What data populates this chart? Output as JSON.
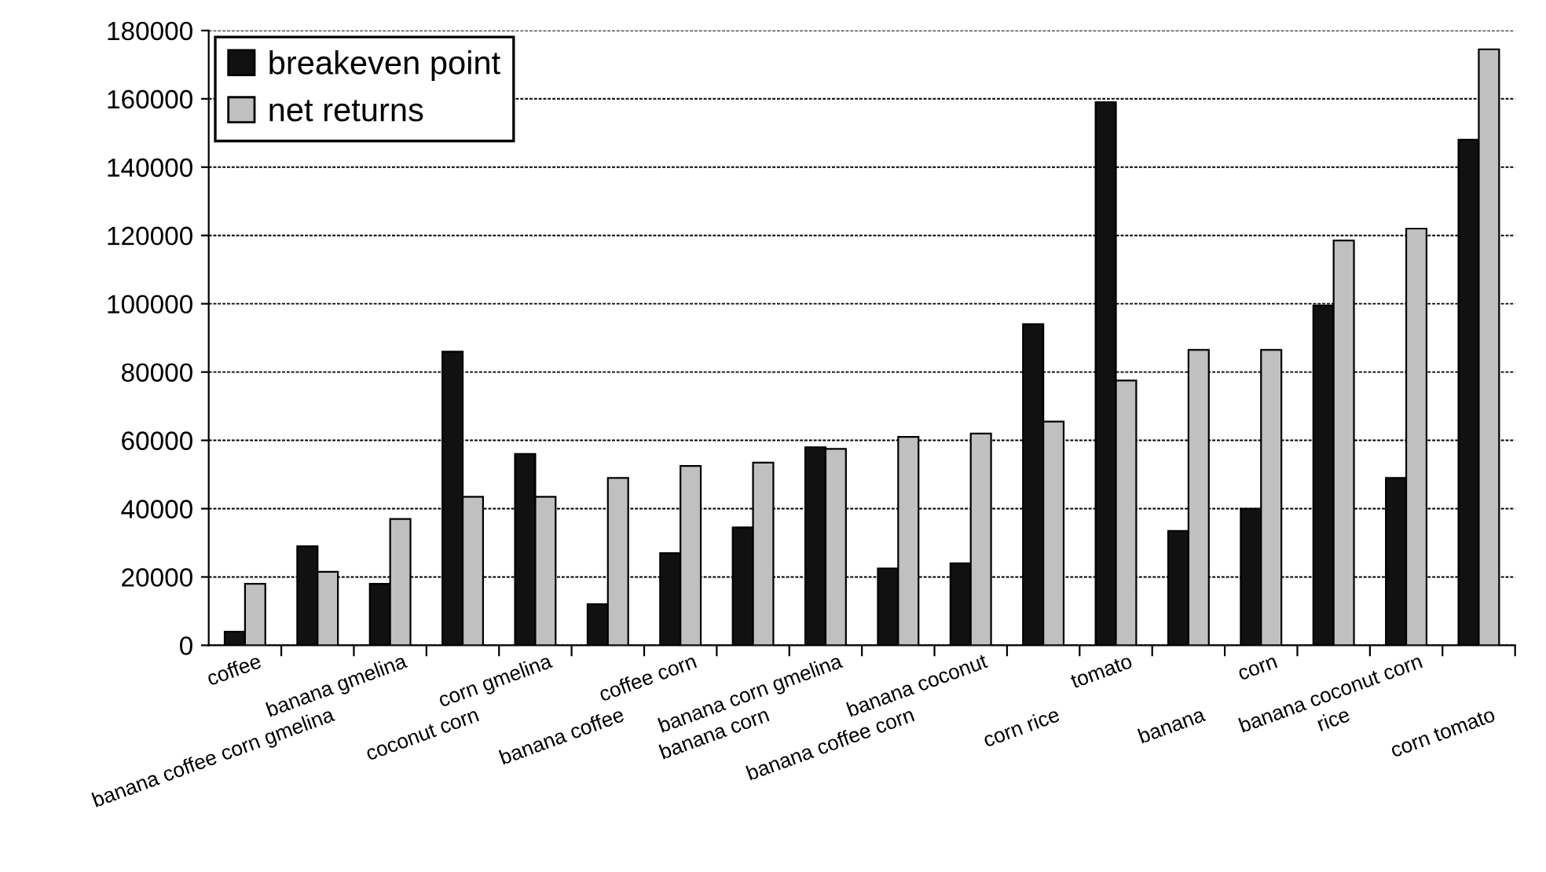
{
  "chart_data": {
    "type": "bar",
    "categories": [
      "coffee",
      "banana coffee corn gmelina",
      "banana gmelina",
      "coconut corn",
      "corn gmelina",
      "banana coffee",
      "coffee corn",
      "banana corn",
      "banana corn gmelina",
      "banana coffee corn",
      "banana coconut",
      "corn rice",
      "tomato",
      "banana",
      "corn",
      "rice",
      "banana coconut corn",
      "corn tomato"
    ],
    "series": [
      {
        "name": "breakeven point",
        "color": "#111111",
        "values": [
          4000,
          29000,
          18000,
          86000,
          56000,
          12000,
          27000,
          34500,
          58000,
          22500,
          24000,
          94000,
          159000,
          33500,
          40000,
          99500,
          49000,
          148000
        ]
      },
      {
        "name": "net returns",
        "color": "#c0c0c0",
        "values": [
          18000,
          21500,
          37000,
          43500,
          43500,
          49000,
          52500,
          53500,
          57500,
          61000,
          62000,
          65500,
          77500,
          86500,
          86500,
          118500,
          122000,
          174500
        ]
      }
    ],
    "ylim": [
      0,
      180000
    ],
    "yticks": [
      0,
      20000,
      40000,
      60000,
      80000,
      100000,
      120000,
      140000,
      160000,
      180000
    ],
    "grid": "y",
    "legend": "top left"
  }
}
